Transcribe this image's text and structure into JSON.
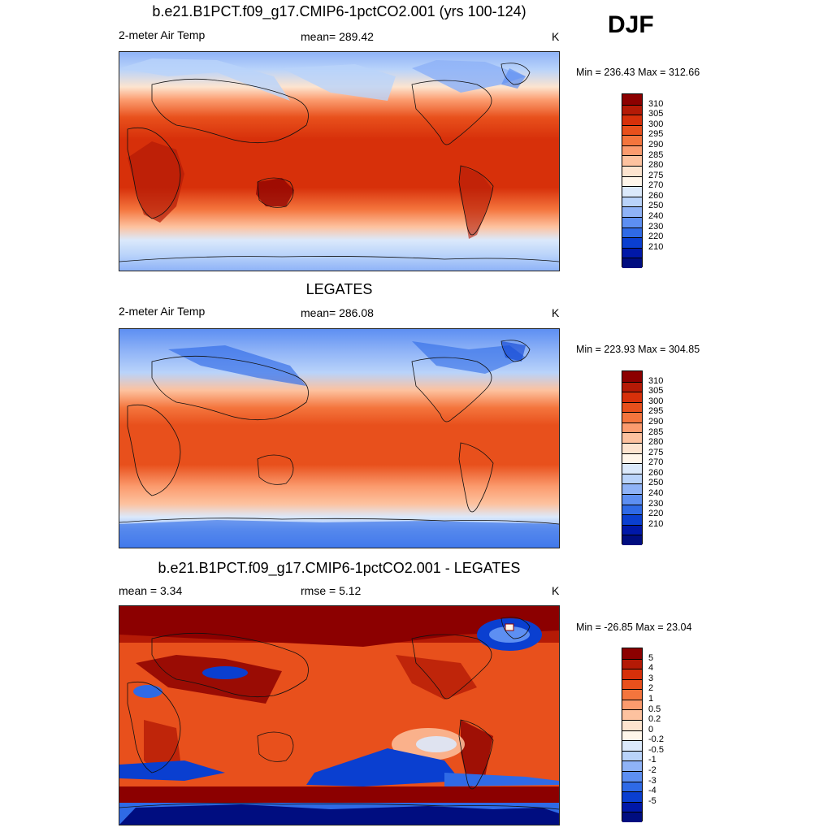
{
  "season": "DJF",
  "panels": [
    {
      "title": "b.e21.B1PCT.f09_g17.CMIP6-1pctCO2.001 (yrs 100-124)",
      "left_label": "2-meter Air Temp",
      "center_label": "mean= 289.42",
      "right_label": "K",
      "minmax": "Min = 236.43 Max = 312.66"
    },
    {
      "title": "LEGATES",
      "left_label": "2-meter Air Temp",
      "center_label": "mean= 286.08",
      "right_label": "K",
      "minmax": "Min = 223.93 Max = 304.85"
    },
    {
      "title": "b.e21.B1PCT.f09_g17.CMIP6-1pctCO2.001 - LEGATES",
      "left_label": "mean =   3.34",
      "center_label": "rmse =   5.12",
      "right_label": "K",
      "minmax": "Min = -26.85 Max =  23.04"
    }
  ],
  "chart_data": [
    {
      "type": "heatmap",
      "title": "b.e21.B1PCT.f09_g17.CMIP6-1pctCO2.001 (yrs 100-124)",
      "variable": "2-meter Air Temp",
      "units": "K",
      "mean": 289.42,
      "min": 236.43,
      "max": 312.66,
      "colorbar_labels": [
        "310",
        "305",
        "300",
        "295",
        "290",
        "285",
        "280",
        "275",
        "270",
        "260",
        "250",
        "240",
        "230",
        "220",
        "210"
      ],
      "colorbar_colors": [
        "#8c0000",
        "#b41a06",
        "#d7300a",
        "#e8501c",
        "#f4753d",
        "#fb9b6e",
        "#fdc29f",
        "#fde4cf",
        "#fff6ea",
        "#dbe9fb",
        "#b9d3fa",
        "#8fb3f7",
        "#5d8ff2",
        "#2f6ae6",
        "#0a3fd0",
        "#0018a8",
        "#000d80"
      ]
    },
    {
      "type": "heatmap",
      "title": "LEGATES",
      "variable": "2-meter Air Temp",
      "units": "K",
      "mean": 286.08,
      "min": 223.93,
      "max": 304.85,
      "colorbar_labels": [
        "310",
        "305",
        "300",
        "295",
        "290",
        "285",
        "280",
        "275",
        "270",
        "260",
        "250",
        "240",
        "230",
        "220",
        "210"
      ],
      "colorbar_colors": [
        "#8c0000",
        "#b41a06",
        "#d7300a",
        "#e8501c",
        "#f4753d",
        "#fb9b6e",
        "#fdc29f",
        "#fde4cf",
        "#fff6ea",
        "#dbe9fb",
        "#b9d3fa",
        "#8fb3f7",
        "#5d8ff2",
        "#2f6ae6",
        "#0a3fd0",
        "#0018a8",
        "#000d80"
      ]
    },
    {
      "type": "heatmap",
      "title": "b.e21.B1PCT.f09_g17.CMIP6-1pctCO2.001 - LEGATES",
      "units": "K",
      "mean": 3.34,
      "rmse": 5.12,
      "min": -26.85,
      "max": 23.04,
      "colorbar_labels": [
        "5",
        "4",
        "3",
        "2",
        "1",
        "0.5",
        "0.2",
        "0",
        "-0.2",
        "-0.5",
        "-1",
        "-2",
        "-3",
        "-4",
        "-5"
      ],
      "colorbar_colors": [
        "#8c0000",
        "#b41a06",
        "#d7300a",
        "#e8501c",
        "#f4753d",
        "#fb9b6e",
        "#fdc29f",
        "#fde4cf",
        "#fff6ea",
        "#dbe9fb",
        "#b9d3fa",
        "#8fb3f7",
        "#5d8ff2",
        "#2f6ae6",
        "#0a3fd0",
        "#0018a8",
        "#000d80"
      ]
    }
  ]
}
